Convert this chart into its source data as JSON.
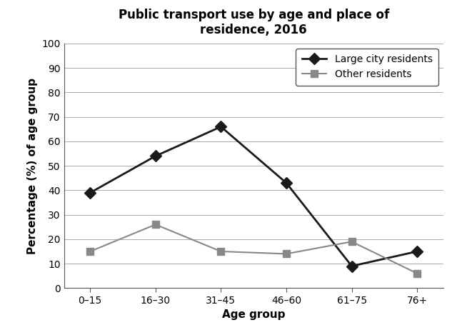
{
  "title": "Public transport use by age and place of\nresidence, 2016",
  "xlabel": "Age group",
  "ylabel": "Percentage (%) of age group",
  "age_groups": [
    "0–15",
    "16–30",
    "31–45",
    "46–60",
    "61–75",
    "76+"
  ],
  "large_city": [
    39,
    54,
    66,
    43,
    9,
    15
  ],
  "other_residents": [
    15,
    26,
    15,
    14,
    19,
    6
  ],
  "large_city_color": "#1a1a1a",
  "other_residents_color": "#888888",
  "ylim": [
    0,
    100
  ],
  "yticks": [
    0,
    10,
    20,
    30,
    40,
    50,
    60,
    70,
    80,
    90,
    100
  ],
  "legend_large_city": "Large city residents",
  "legend_other": "Other residents",
  "title_fontsize": 12,
  "axis_label_fontsize": 11,
  "tick_fontsize": 10,
  "legend_fontsize": 10,
  "background_color": "#ffffff",
  "grid_color": "#aaaaaa"
}
